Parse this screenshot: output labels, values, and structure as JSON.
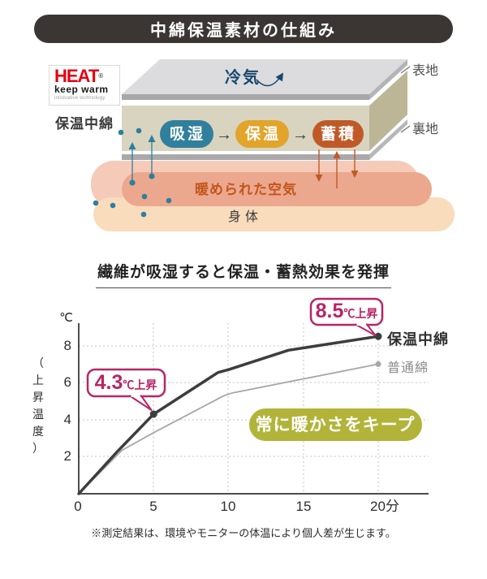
{
  "header": {
    "title": "中綿保温素材の仕組み",
    "bg_color": "#3b3533"
  },
  "diagram": {
    "logo": {
      "brand": "HEAT",
      "registered_mark": "®",
      "tagline": "keep warm",
      "subtext": "innovative technology",
      "brand_color": "#e60012"
    },
    "batting_label": "保温中綿",
    "cold_air_label": "冷気",
    "outer_fabric_label": "表地",
    "lining_label": "裏地",
    "process_steps": [
      {
        "label": "吸湿",
        "color": "#2f7f9d"
      },
      {
        "label": "保温",
        "color": "#e2a42a"
      },
      {
        "label": "蓄積",
        "color": "#bf5a28"
      }
    ],
    "step_arrow": "→",
    "warmed_air_label": "暖められた空気",
    "body_label": "身体"
  },
  "chart_data": {
    "type": "line",
    "title": "繊維が吸湿すると保温・蓄熱効果を発揮",
    "y_unit_label": "℃",
    "y_axis_label": "（上昇温度）",
    "x_tick_labels": [
      "0",
      "5",
      "10",
      "15",
      "20分"
    ],
    "y_tick_labels": [
      "8",
      "6",
      "4",
      "2"
    ],
    "x_ticks": [
      0,
      5,
      10,
      15,
      20
    ],
    "y_ticks": [
      8,
      6,
      4,
      2
    ],
    "xlim": [
      0,
      20
    ],
    "ylim": [
      0,
      9.2
    ],
    "grid": "dotted",
    "series": [
      {
        "name": "保温中綿",
        "color": "#3d3d3d",
        "line_width": 3.5,
        "marker_radius": 4.5,
        "points": [
          [
            0,
            0
          ],
          [
            2.6,
            2.3
          ],
          [
            4.7,
            4.05
          ],
          [
            5,
            4.3
          ],
          [
            9.3,
            6.55
          ],
          [
            10,
            6.7
          ],
          [
            14,
            7.75
          ],
          [
            20,
            8.5
          ]
        ],
        "markers": [
          [
            5,
            4.3
          ],
          [
            20,
            8.5
          ]
        ]
      },
      {
        "name": "普通綿",
        "color": "#a6a6a6",
        "line_width": 1.8,
        "marker_radius": 3.5,
        "points": [
          [
            0,
            0
          ],
          [
            2.9,
            2.35
          ],
          [
            5,
            3.3
          ],
          [
            9.7,
            5.3
          ],
          [
            10.3,
            5.45
          ],
          [
            20,
            7.0
          ]
        ],
        "markers": [
          [
            20,
            7.0
          ]
        ]
      }
    ],
    "annotations": [
      {
        "value": "8.5",
        "suffix": "℃上昇",
        "at": [
          20,
          8.5
        ],
        "color": "#b82566"
      },
      {
        "value": "4.3",
        "suffix": "℃上昇",
        "at": [
          5,
          4.3
        ],
        "color": "#b82566"
      }
    ],
    "callout": {
      "label": "常に暖かさをキープ",
      "color": "#b1b439"
    }
  },
  "footer": {
    "note": "※測定結果は、環境やモニターの体温により個人差が生じます。"
  }
}
